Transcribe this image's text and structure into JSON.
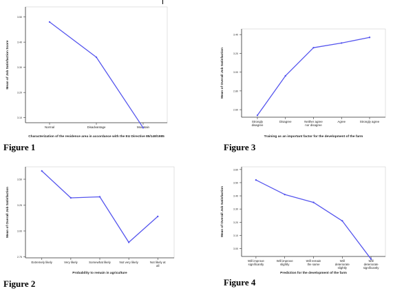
{
  "figures": [
    {
      "caption": "Figure 1"
    },
    {
      "caption": "Figure 2"
    },
    {
      "caption": "Figure 3"
    },
    {
      "caption": "Figure 4"
    }
  ],
  "colors": {
    "line": "#5555ee",
    "axis": "#333333",
    "grid": "#dddddd",
    "text": "#222222"
  },
  "chart_data": [
    {
      "type": "line",
      "title": "",
      "xlabel": "Characterization of the residence area in accordance with the EU Directive 85/148/1985",
      "ylabel": "Mean of Job Satisfaction Score",
      "categories": [
        "Normal",
        "Disadvantage",
        "Mountain"
      ],
      "values": [
        3.48,
        3.34,
        3.06
      ],
      "yticks": [
        "3.50",
        "3.40",
        "3.30",
        "3.20",
        "3.10"
      ],
      "ytick_values": [
        3.5,
        3.4,
        3.3,
        3.2,
        3.1
      ],
      "ylim": [
        3.08,
        3.54
      ],
      "grid": false
    },
    {
      "type": "line",
      "title": "",
      "xlabel": "Probability to remain in agriculture",
      "ylabel": "Mean of Overall Job Satisfaction",
      "categories": [
        "Extremely likely",
        "Very likely",
        "Somewhat likely",
        "Not very likely",
        "Not likely at all"
      ],
      "values": [
        3.58,
        3.32,
        3.33,
        2.89,
        3.14
      ],
      "yticks": [
        "3.50",
        "3.25",
        "3.00",
        "2.75",
        "2.50"
      ],
      "ytick_values": [
        3.5,
        3.25,
        3.0,
        2.75,
        2.5
      ],
      "ylim": [
        2.74,
        3.62
      ],
      "grid": false
    },
    {
      "type": "line",
      "title": "",
      "xlabel": "Training as an important factor for the development of the farm",
      "ylabel": "Mean of Overall Job Satisfaction",
      "categories": [
        "Strongly disagree",
        "Disagree",
        "Neither agree nor disagree",
        "Agree",
        "Strongly agree"
      ],
      "values": [
        2.54,
        2.96,
        3.26,
        3.31,
        3.37
      ],
      "yticks": [
        "3.40",
        "3.20",
        "3.00",
        "2.80",
        "2.60"
      ],
      "ytick_values": [
        3.4,
        3.2,
        3.0,
        2.8,
        2.6
      ],
      "ylim": [
        2.52,
        3.46
      ],
      "grid": false
    },
    {
      "type": "line",
      "title": "",
      "xlabel": "Prediction for the development of the farm",
      "ylabel": "Mean of Overall Job Satisfaction",
      "categories": [
        "Will improve significantly",
        "Will improve slightly",
        "Will remain the same",
        "Will deteriorate slightly",
        "Will deteriorate significantly"
      ],
      "values": [
        3.52,
        3.41,
        3.35,
        3.21,
        2.92
      ],
      "yticks": [
        "3.60",
        "3.50",
        "3.40",
        "3.30",
        "3.20",
        "3.10",
        "3.00"
      ],
      "ytick_values": [
        3.6,
        3.5,
        3.4,
        3.3,
        3.2,
        3.1,
        3.0
      ],
      "ylim": [
        2.94,
        3.62
      ],
      "grid": false
    }
  ]
}
